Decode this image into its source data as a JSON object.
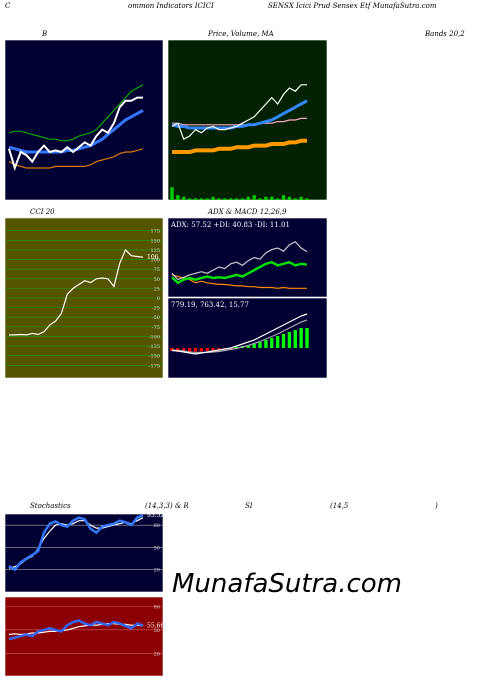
{
  "header": [
    "C",
    "ommon Indicators ICICI",
    "SENSX Icici Prud Sensex Etf MunafaSutra.com"
  ],
  "row_labels": [
    "B",
    "Price, Volume, MA",
    "Bands 20,2",
    "CCI 20",
    "ADX  & MACD 12,26,9",
    "Stochastics",
    "(14,3,3) & R",
    "SI",
    "(14,5",
    ")"
  ],
  "watermark": "MunafaSutra.com",
  "chart_data": [
    {
      "type": "line",
      "background": "#000033",
      "ylim": [
        0,
        100
      ],
      "series": [
        {
          "color": "#00aa00",
          "values": [
            42,
            43,
            43,
            42,
            41,
            40,
            39,
            38,
            38,
            37,
            37,
            38,
            40,
            41,
            42,
            44,
            48,
            52,
            56,
            60,
            64,
            68,
            70,
            72
          ]
        },
        {
          "color": "#dd7700",
          "values": [
            24,
            22,
            21,
            20,
            20,
            20,
            20,
            20,
            21,
            21,
            21,
            21,
            21,
            21,
            22,
            24,
            25,
            26,
            27,
            29,
            30,
            30,
            31,
            32
          ]
        },
        {
          "color": "#3377ff",
          "width": 3,
          "values": [
            33,
            32,
            31,
            30,
            30,
            30,
            30,
            30,
            30,
            30,
            31,
            31,
            32,
            33,
            34,
            36,
            38,
            41,
            44,
            47,
            50,
            52,
            54,
            56
          ]
        },
        {
          "color": "#ffffff",
          "width": 2,
          "values": [
            32,
            20,
            30,
            28,
            24,
            30,
            34,
            30,
            31,
            30,
            33,
            30,
            33,
            36,
            34,
            40,
            44,
            42,
            48,
            58,
            62,
            62,
            64,
            64
          ]
        }
      ]
    },
    {
      "type": "line",
      "background": "#002200",
      "ylim": [
        0,
        100
      ],
      "y2lim": [
        0,
        100
      ],
      "series": [
        {
          "color": "#00cc00",
          "kind": "bar",
          "axis": "y2",
          "values": [
            8,
            3,
            2,
            1,
            1,
            1,
            1,
            2,
            1,
            1,
            1,
            1,
            1,
            2,
            3,
            1,
            2,
            2,
            1,
            3,
            2,
            1,
            2,
            1
          ]
        },
        {
          "color": "#ff9900",
          "width": 4,
          "values": [
            30,
            30,
            30,
            30,
            31,
            31,
            31,
            31,
            32,
            32,
            32,
            33,
            33,
            33,
            34,
            34,
            34,
            35,
            35,
            35,
            36,
            36,
            37,
            37
          ]
        },
        {
          "color": "#ffaacc",
          "values": [
            48,
            48,
            47,
            47,
            47,
            47,
            47,
            47,
            47,
            47,
            47,
            47,
            47,
            47,
            47,
            48,
            48,
            48,
            49,
            49,
            50,
            50,
            51,
            51
          ]
        },
        {
          "color": "#3388ff",
          "width": 3,
          "values": [
            47,
            46,
            46,
            45,
            45,
            45,
            45,
            45,
            45,
            45,
            45,
            46,
            46,
            47,
            47,
            48,
            49,
            50,
            52,
            54,
            56,
            58,
            60,
            62
          ]
        },
        {
          "color": "#ffffff",
          "values": [
            46,
            48,
            38,
            40,
            44,
            42,
            45,
            46,
            44,
            44,
            45,
            46,
            48,
            50,
            52,
            56,
            60,
            64,
            60,
            66,
            70,
            68,
            72,
            72
          ]
        }
      ]
    },
    {
      "type": "line",
      "background": "#555500",
      "grid": true,
      "grid_color": "#229922",
      "ylim": [
        -208,
        208
      ],
      "yticks": [
        175,
        150,
        125,
        100,
        75,
        50,
        25,
        0,
        -25,
        -50,
        -75,
        -100,
        -125,
        -150,
        -175
      ],
      "series": [
        {
          "color": "#ffffff",
          "values": [
            -96,
            -96,
            -95,
            -96,
            -92,
            -95,
            -88,
            -70,
            -60,
            -40,
            10,
            25,
            35,
            45,
            40,
            50,
            52,
            50,
            30,
            90,
            125,
            110,
            108,
            106
          ],
          "value_labels": [
            null,
            null,
            null,
            null,
            null,
            null,
            null,
            null,
            null,
            null,
            null,
            null,
            null,
            null,
            null,
            null,
            null,
            null,
            null,
            null,
            null,
            null,
            null,
            "106"
          ]
        }
      ]
    },
    {
      "type": "line",
      "background": "#000033",
      "ylim": [
        0,
        100
      ],
      "annotation": "ADX: 57.52  +DI: 40.83  -DI: 11.01",
      "series": [
        {
          "color": "#ff8800",
          "values": [
            28,
            26,
            24,
            22,
            18,
            20,
            18,
            17,
            16,
            16,
            15,
            14,
            14,
            13,
            13,
            12,
            12,
            12,
            11,
            12,
            11,
            11,
            11,
            11.01
          ]
        },
        {
          "color": "#00dd00",
          "width": 2.5,
          "values": [
            25,
            18,
            22,
            24,
            22,
            24,
            26,
            24,
            25,
            24,
            26,
            28,
            26,
            30,
            34,
            38,
            42,
            44,
            40,
            42,
            44,
            40,
            42,
            40.83
          ]
        },
        {
          "color": "#cccccc",
          "values": [
            30,
            22,
            25,
            28,
            30,
            32,
            30,
            34,
            38,
            36,
            42,
            44,
            40,
            46,
            50,
            48,
            56,
            60,
            62,
            58,
            66,
            70,
            62,
            57.52
          ]
        }
      ]
    },
    {
      "type": "line",
      "background": "#000033",
      "ylim": [
        -60,
        100
      ],
      "annotation": "779.19,  763.42,  15.77",
      "series": [
        {
          "color": "#00ff00",
          "negative_color": "#ff0000",
          "kind": "bar",
          "values": [
            -6,
            -8,
            -8,
            -8,
            -7,
            -7,
            -6,
            -5,
            -4,
            -3,
            -2,
            2,
            4,
            6,
            8,
            12,
            16,
            20,
            24,
            28,
            32,
            36,
            40,
            40
          ]
        },
        {
          "color": "#aaaaaa",
          "values": [
            -4,
            -5,
            -6,
            -8,
            -9,
            -9,
            -9,
            -8,
            -7,
            -5,
            -3,
            -1,
            2,
            5,
            9,
            13,
            18,
            23,
            28,
            34,
            40,
            46,
            52,
            56
          ]
        },
        {
          "color": "#ffffff",
          "values": [
            -5,
            -6,
            -8,
            -10,
            -12,
            -10,
            -8,
            -6,
            -4,
            -2,
            0,
            4,
            8,
            12,
            16,
            22,
            28,
            34,
            40,
            46,
            52,
            58,
            64,
            68
          ]
        }
      ]
    },
    {
      "type": "line",
      "background": "#000033",
      "grid": true,
      "grid_color": "#aaaaaa",
      "ylim": [
        -10,
        95
      ],
      "yticks": [
        80,
        50,
        20
      ],
      "series": [
        {
          "color": "#ffffff",
          "values": [
            22,
            24,
            28,
            34,
            38,
            48,
            62,
            72,
            80,
            82,
            80,
            82,
            86,
            86,
            80,
            76,
            76,
            78,
            80,
            82,
            84,
            82,
            86,
            90
          ]
        },
        {
          "color": "#3377ff",
          "width": 2.5,
          "values": [
            25,
            20,
            30,
            35,
            40,
            45,
            70,
            82,
            85,
            80,
            78,
            86,
            90,
            88,
            75,
            70,
            78,
            80,
            82,
            86,
            84,
            80,
            90,
            93.52
          ],
          "value_labels": [
            null,
            null,
            null,
            null,
            null,
            null,
            null,
            null,
            null,
            null,
            null,
            null,
            null,
            null,
            null,
            null,
            null,
            null,
            null,
            null,
            null,
            null,
            null,
            "93.52"
          ]
        }
      ]
    },
    {
      "type": "line",
      "background": "#8b0000",
      "grid": true,
      "grid_color": "#cc6666",
      "ylim": [
        -9,
        92
      ],
      "yticks": [
        80,
        50,
        20
      ],
      "series": [
        {
          "color": "#ffffff",
          "values": [
            44,
            45,
            44,
            45,
            46,
            46,
            47,
            48,
            48,
            49,
            50,
            52,
            54,
            55,
            56,
            56,
            57,
            58,
            58,
            57,
            57,
            56,
            56,
            55
          ]
        },
        {
          "color": "#3366ff",
          "width": 2.5,
          "values": [
            38,
            40,
            42,
            44,
            42,
            48,
            50,
            52,
            50,
            48,
            56,
            60,
            62,
            58,
            56,
            60,
            58,
            56,
            60,
            58,
            55,
            52,
            58,
            55.66
          ],
          "value_labels": [
            null,
            null,
            null,
            null,
            null,
            null,
            null,
            null,
            null,
            null,
            null,
            null,
            null,
            null,
            null,
            null,
            null,
            null,
            null,
            null,
            null,
            null,
            null,
            "55.66"
          ]
        }
      ]
    }
  ]
}
